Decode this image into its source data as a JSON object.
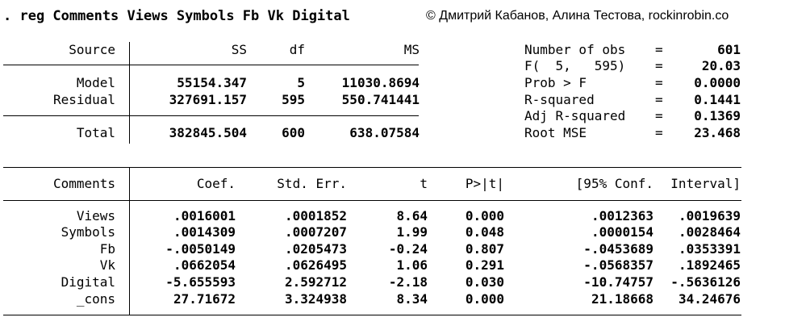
{
  "command": ". reg Comments Views Symbols Fb Vk Digital",
  "copyright": "© Дмитрий Кабанов, Алина Тестова, rockinrobin.co",
  "anova": {
    "headers": [
      "Source",
      "SS",
      "df",
      "MS"
    ],
    "rows": [
      [
        "Model",
        "55154.347",
        "5",
        "11030.8694"
      ],
      [
        "Residual",
        "327691.157",
        "595",
        "550.741441"
      ]
    ],
    "total": [
      "Total",
      "382845.504",
      "600",
      "638.07584"
    ]
  },
  "stats": [
    [
      "Number of obs",
      "=",
      "601"
    ],
    [
      "F(  5,   595)",
      "=",
      "20.03"
    ],
    [
      "Prob > F",
      "=",
      "0.0000"
    ],
    [
      "R-squared",
      "=",
      "0.1441"
    ],
    [
      "Adj R-squared",
      "=",
      "0.1369"
    ],
    [
      "Root MSE",
      "=",
      "23.468"
    ]
  ],
  "coef": {
    "headers": [
      "Comments",
      "Coef.",
      "Std. Err.",
      "t",
      "P>|t|",
      "[95% Conf.",
      "Interval]"
    ],
    "rows": [
      [
        "Views",
        ".0016001",
        ".0001852",
        "8.64",
        "0.000",
        ".0012363",
        ".0019639"
      ],
      [
        "Symbols",
        ".0014309",
        ".0007207",
        "1.99",
        "0.048",
        ".0000154",
        ".0028464"
      ],
      [
        "Fb",
        "-.0050149",
        ".0205473",
        "-0.24",
        "0.807",
        "-.0453689",
        ".0353391"
      ],
      [
        "Vk",
        ".0662054",
        ".0626495",
        "1.06",
        "0.291",
        "-.0568357",
        ".1892465"
      ],
      [
        "Digital",
        "-5.655593",
        "2.592712",
        "-2.18",
        "0.030",
        "-10.74757",
        "-.5636126"
      ],
      [
        "_cons",
        "27.71672",
        "3.324938",
        "8.34",
        "0.000",
        "21.18668",
        "34.24676"
      ]
    ]
  }
}
